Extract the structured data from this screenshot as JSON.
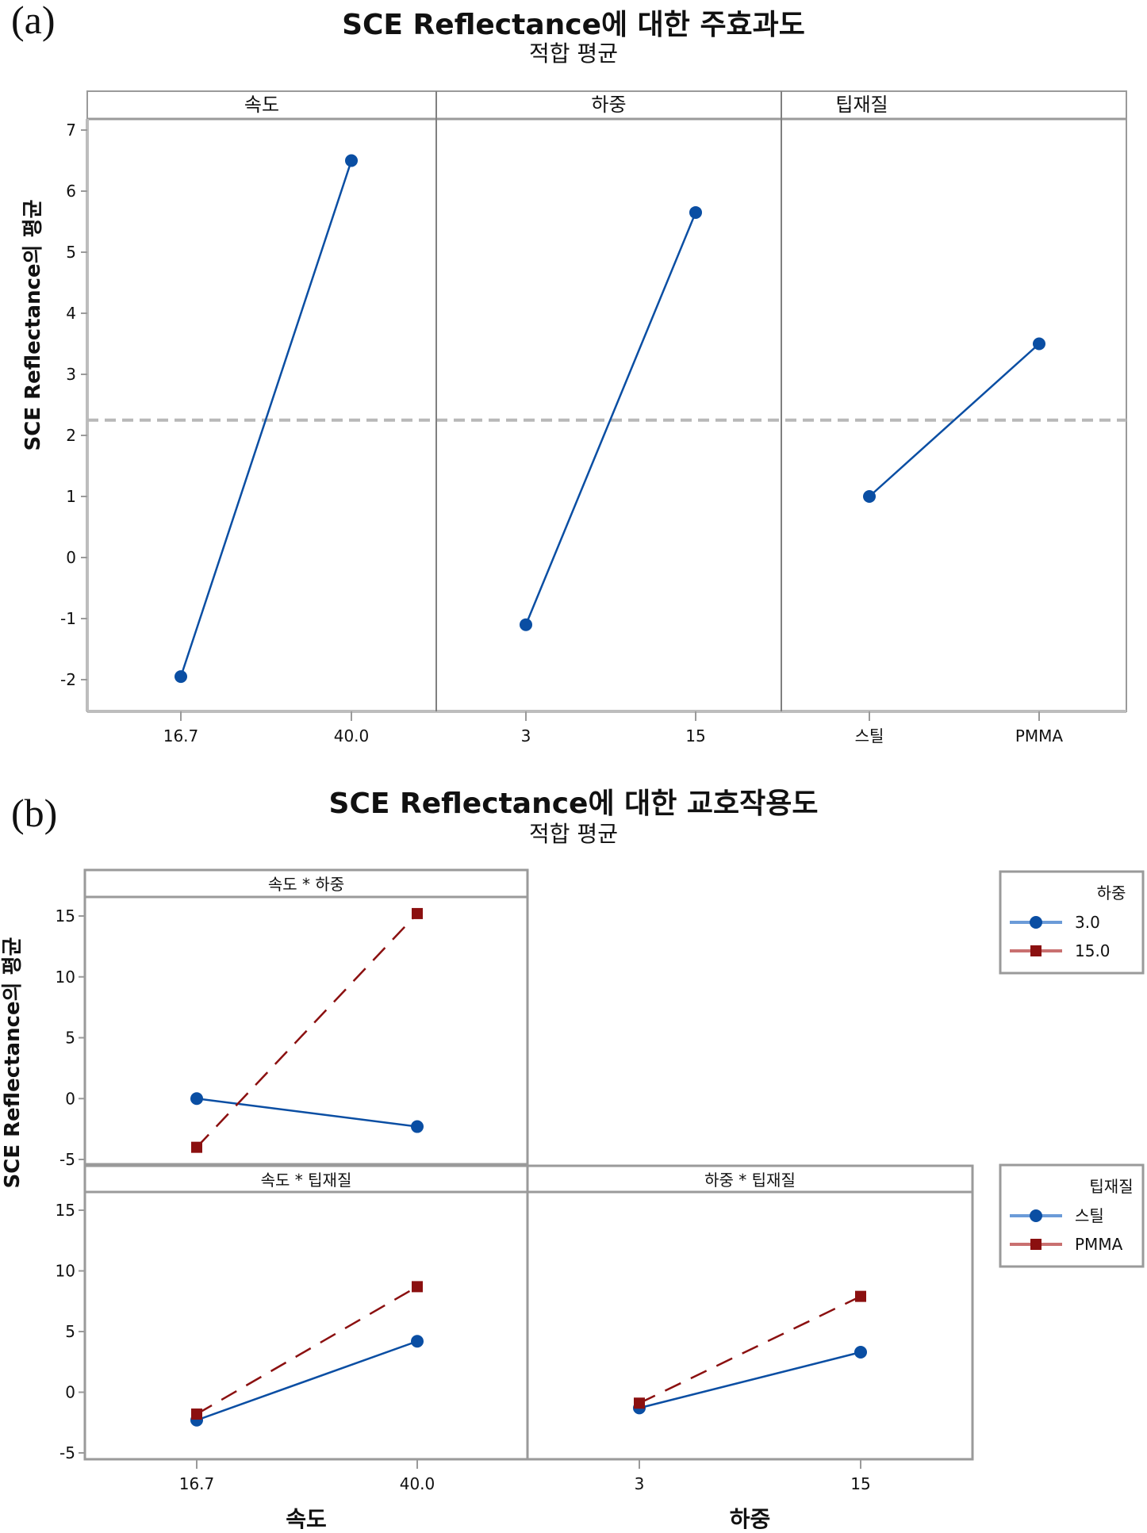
{
  "figure_a": {
    "panel_label": "(a)",
    "title": "SCE Reflectance에 대한 주효과도",
    "subtitle": "적합 평균"
  },
  "figure_b": {
    "panel_label": "(b)",
    "title": "SCE Reflectance에 대한 교호작용도",
    "subtitle": "적합 평균"
  },
  "colors": {
    "series_blue": "#0a4ea3",
    "series_blue_light": "#6b9bd8",
    "series_red": "#8b1010",
    "series_red_light": "#c97070",
    "mean_line": "#b8b8b8",
    "frame": "#9a9a9a"
  },
  "chart_data": [
    {
      "id": "main-effects",
      "type": "line",
      "title": "SCE Reflectance에 대한 주효과도",
      "subtitle": "적합 평균",
      "ylabel": "SCE Reflectance의 평균",
      "ylim": [
        -2.5,
        7.3
      ],
      "yticks": [
        -2,
        -1,
        0,
        1,
        2,
        3,
        4,
        5,
        6,
        7
      ],
      "overall_mean": 2.25,
      "panels": [
        {
          "strip": "속도",
          "categories": [
            "16.7",
            "40.0"
          ],
          "values": [
            -1.95,
            6.5
          ]
        },
        {
          "strip": "하중",
          "categories": [
            "3",
            "15"
          ],
          "values": [
            -1.1,
            5.65
          ]
        },
        {
          "strip": "팁재질",
          "categories": [
            "스틸",
            "PMMA"
          ],
          "values": [
            1.0,
            3.5
          ]
        }
      ]
    },
    {
      "id": "interaction",
      "type": "line",
      "title": "SCE Reflectance에 대한 교호작용도",
      "subtitle": "적합 평균",
      "ylabel": "SCE Reflectance의 평균",
      "ylim": [
        -5.5,
        16.5
      ],
      "yticks": [
        -5,
        0,
        5,
        10,
        15
      ],
      "panels": [
        {
          "strip": "속도 * 하중",
          "categories": [
            "16.7",
            "40.0"
          ],
          "series": [
            {
              "name": "3.0",
              "values": [
                0.0,
                -2.3
              ]
            },
            {
              "name": "15.0",
              "values": [
                -4.0,
                15.2
              ]
            }
          ]
        },
        {
          "strip": "속도 * 팁재질",
          "categories": [
            "16.7",
            "40.0"
          ],
          "xlabel": "속도",
          "series": [
            {
              "name": "스틸",
              "values": [
                -2.3,
                4.2
              ]
            },
            {
              "name": "PMMA",
              "values": [
                -1.8,
                8.7
              ]
            }
          ]
        },
        {
          "strip": "하중 * 팁재질",
          "categories": [
            "3",
            "15"
          ],
          "xlabel": "하중",
          "series": [
            {
              "name": "스틸",
              "values": [
                -1.3,
                3.3
              ]
            },
            {
              "name": "PMMA",
              "values": [
                -0.9,
                7.9
              ]
            }
          ]
        }
      ],
      "legends": [
        {
          "title": "하중",
          "entries": [
            "3.0",
            "15.0"
          ]
        },
        {
          "title": "팁재질",
          "entries": [
            "스틸",
            "PMMA"
          ]
        }
      ]
    }
  ]
}
